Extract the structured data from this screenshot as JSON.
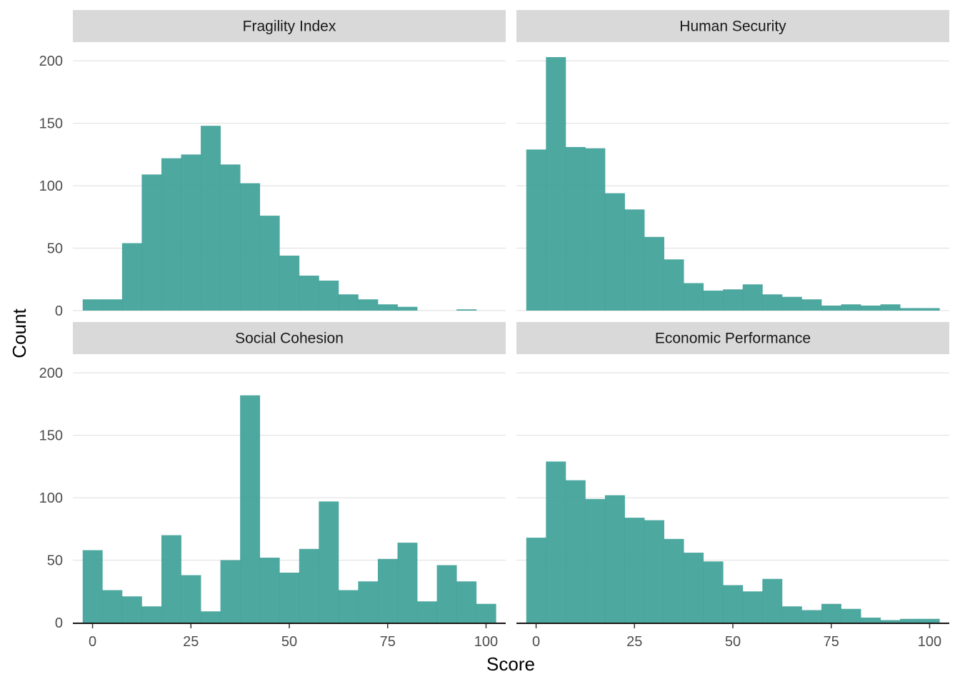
{
  "chart_data": {
    "type": "bar",
    "subtype": "faceted-histogram",
    "xlabel": "Score",
    "ylabel": "Count",
    "xlim": [
      -5,
      105
    ],
    "ylim": [
      0,
      215
    ],
    "x_ticks": [
      0,
      25,
      50,
      75,
      100
    ],
    "y_ticks": [
      0,
      50,
      100,
      150,
      200
    ],
    "bin_width": 5,
    "bin_starts": [
      -2.5,
      2.5,
      7.5,
      12.5,
      17.5,
      22.5,
      27.5,
      32.5,
      37.5,
      42.5,
      47.5,
      52.5,
      57.5,
      62.5,
      67.5,
      72.5,
      77.5,
      82.5,
      87.5,
      92.5,
      97.5
    ],
    "grid": true,
    "bar_color": "#3A9E96",
    "strip_color": "#D9D9D9",
    "facets": [
      {
        "name": "Fragility Index",
        "values": [
          9,
          9,
          54,
          109,
          122,
          125,
          148,
          117,
          102,
          76,
          44,
          28,
          24,
          13,
          9,
          5,
          3,
          0,
          0,
          1,
          0
        ]
      },
      {
        "name": "Human Security",
        "values": [
          129,
          203,
          131,
          130,
          94,
          81,
          59,
          41,
          22,
          16,
          17,
          21,
          13,
          11,
          9,
          4,
          5,
          4,
          5,
          2,
          2
        ]
      },
      {
        "name": "Social Cohesion",
        "values": [
          58,
          26,
          21,
          13,
          70,
          38,
          9,
          50,
          182,
          52,
          40,
          59,
          97,
          26,
          33,
          51,
          64,
          17,
          46,
          33,
          15
        ]
      },
      {
        "name": "Economic Performance",
        "values": [
          68,
          129,
          114,
          99,
          102,
          84,
          82,
          67,
          56,
          49,
          30,
          25,
          35,
          13,
          10,
          15,
          11,
          4,
          2,
          3,
          3
        ]
      }
    ]
  }
}
